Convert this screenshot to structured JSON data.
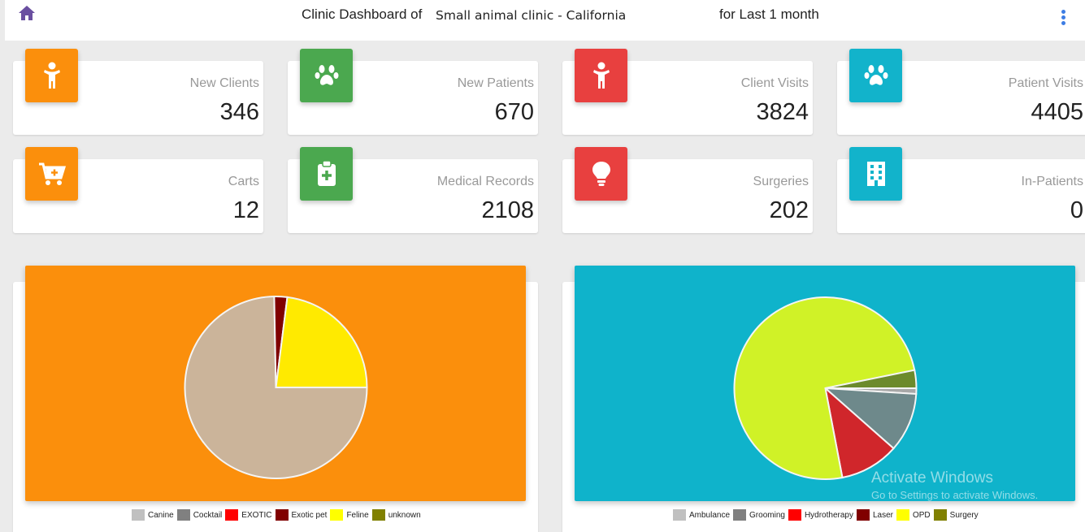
{
  "header": {
    "title_prefix": "Clinic Dashboard of",
    "clinic_name": "Small animal clinic - California",
    "period": "for Last 1 month",
    "home_icon": "home-icon",
    "menu_icon": "more-vertical-icon"
  },
  "colors": {
    "orange": "#fb8f0c",
    "green": "#4ba84f",
    "red": "#e8403f",
    "teal": "#12b3cb"
  },
  "stats": [
    {
      "label": "New Clients",
      "value": "346",
      "icon": "person-icon",
      "color": "orange"
    },
    {
      "label": "New Patients",
      "value": "670",
      "icon": "paw-icon",
      "color": "green"
    },
    {
      "label": "Client Visits",
      "value": "3824",
      "icon": "person-icon",
      "color": "red"
    },
    {
      "label": "Patient Visits",
      "value": "4405",
      "icon": "paw-icon",
      "color": "teal"
    },
    {
      "label": "Carts",
      "value": "12",
      "icon": "cart-plus-icon",
      "color": "orange"
    },
    {
      "label": "Medical Records",
      "value": "2108",
      "icon": "medical-clipboard-icon",
      "color": "green"
    },
    {
      "label": "Surgeries",
      "value": "202",
      "icon": "lightbulb-icon",
      "color": "red"
    },
    {
      "label": "In-Patients",
      "value": "0",
      "icon": "hospital-building-icon",
      "color": "teal"
    }
  ],
  "chart_data": [
    {
      "type": "pie",
      "background": "#fb8f0c",
      "categories": [
        "Canine",
        "Cocktail",
        "EXOTIC",
        "Exotic pet",
        "Feline",
        "unknown"
      ],
      "values": [
        74.7,
        0,
        0,
        2.3,
        23.0,
        0
      ],
      "colors": [
        "#cbb49a",
        "#808080",
        "#ff0000",
        "#800000",
        "#ffea00",
        "#808000"
      ],
      "legend_colors": [
        "#c0c0c0",
        "#808080",
        "#ff0000",
        "#800000",
        "#ffff00",
        "#808000"
      ],
      "legend": "bottom"
    },
    {
      "type": "pie",
      "background": "#0fb3cb",
      "categories": [
        "Ambulance",
        "Grooming",
        "Hydrotherapy",
        "Laser",
        "OPD",
        "Surgery"
      ],
      "values": [
        1.0,
        10.5,
        10.5,
        0,
        74.8,
        3.2
      ],
      "colors": [
        "#a8a8a8",
        "#6e898b",
        "#d0262b",
        "#800000",
        "#d0f227",
        "#6c8a2c"
      ],
      "legend_colors": [
        "#c0c0c0",
        "#808080",
        "#ff0000",
        "#800000",
        "#ffff00",
        "#808000"
      ],
      "legend": "bottom"
    }
  ],
  "watermark": {
    "line1": "Activate Windows",
    "line2": "Go to Settings to activate Windows."
  }
}
